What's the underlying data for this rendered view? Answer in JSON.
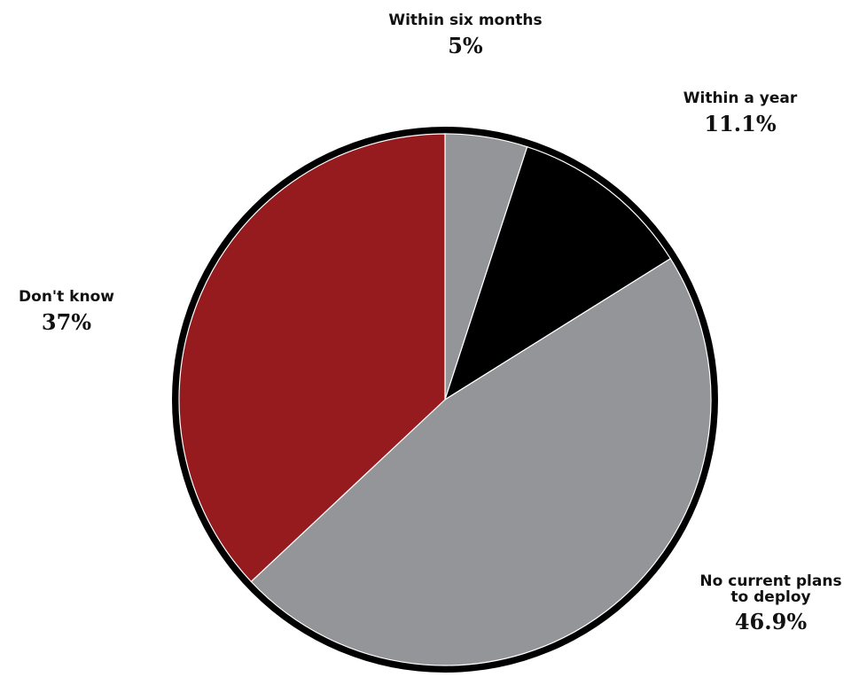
{
  "chart_data": {
    "type": "pie",
    "title": "",
    "categories": [
      "Within six months",
      "Within a year",
      "No current plans to deploy",
      "Don't know"
    ],
    "values": [
      5,
      11.1,
      46.9,
      37
    ],
    "value_labels": [
      "5%",
      "11.1%",
      "46.9%",
      "37%"
    ],
    "colors": [
      "#939598",
      "#000000",
      "#939598",
      "#951b1f"
    ],
    "start": "12 o'clock, clockwise",
    "outline_color": "#000000",
    "legend": "none (direct labels)"
  },
  "labels": {
    "within_six_months": {
      "name": "Within six months",
      "pct": "5%"
    },
    "within_a_year": {
      "name": "Within a year",
      "pct": "11.1%"
    },
    "dont_know": {
      "name": "Don't know",
      "pct": "37%"
    },
    "no_current_plans": {
      "name_line1": "No current plans",
      "name_line2": "to deploy",
      "pct": "46.9%"
    }
  }
}
